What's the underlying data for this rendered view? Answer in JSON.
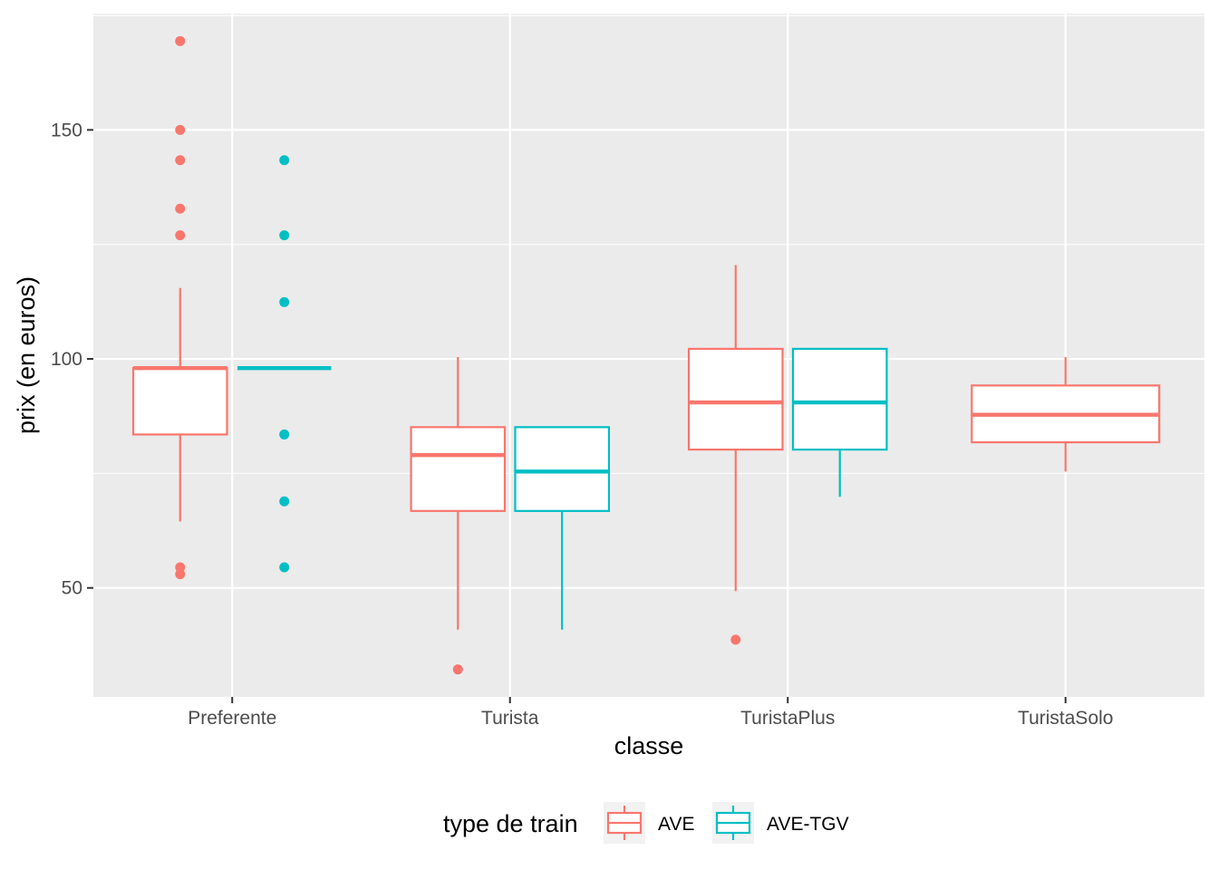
{
  "chart_data": {
    "type": "boxplot",
    "xlabel": "classe",
    "ylabel": "prix (en euros)",
    "ylim": [
      26.2,
      175.4
    ],
    "y_ticks": [
      50,
      100,
      150
    ],
    "categories": [
      "Preferente",
      "Turista",
      "TuristaPlus",
      "TuristaSolo"
    ],
    "legend": {
      "title": "type de train",
      "position": "bottom"
    },
    "panel_background": "#ebebeb",
    "grid": true,
    "series": [
      {
        "name": "AVE",
        "color": "#f8766d",
        "boxes": [
          {
            "category": "Preferente",
            "lower_whisker": 64.5,
            "q1": 83.5,
            "median": 98.0,
            "q3": 98.0,
            "upper_whisker": 115.5,
            "outliers": [
              53.0,
              54.5,
              127.0,
              132.8,
              143.4,
              150.0,
              169.4
            ]
          },
          {
            "category": "Turista",
            "lower_whisker": 40.9,
            "q1": 66.8,
            "median": 79.0,
            "q3": 85.1,
            "upper_whisker": 100.4,
            "outliers": [
              32.2
            ]
          },
          {
            "category": "TuristaPlus",
            "lower_whisker": 49.3,
            "q1": 80.2,
            "median": 90.5,
            "q3": 102.2,
            "upper_whisker": 120.5,
            "outliers": [
              38.7
            ]
          },
          {
            "category": "TuristaSolo",
            "lower_whisker": 75.4,
            "q1": 81.8,
            "median": 87.8,
            "q3": 94.2,
            "upper_whisker": 100.4,
            "outliers": [],
            "full_width": true
          }
        ]
      },
      {
        "name": "AVE-TGV",
        "color": "#00bfc4",
        "boxes": [
          {
            "category": "Preferente",
            "lower_whisker": 98.0,
            "q1": 98.0,
            "median": 98.0,
            "q3": 98.0,
            "upper_whisker": 98.0,
            "outliers": [
              54.5,
              68.9,
              83.5,
              112.4,
              127.0,
              143.4
            ]
          },
          {
            "category": "Turista",
            "lower_whisker": 40.9,
            "q1": 66.8,
            "median": 75.4,
            "q3": 85.1,
            "upper_whisker": 85.1,
            "outliers": []
          },
          {
            "category": "TuristaPlus",
            "lower_whisker": 69.9,
            "q1": 80.2,
            "median": 90.5,
            "q3": 102.2,
            "upper_whisker": 102.2,
            "outliers": []
          }
        ]
      }
    ]
  }
}
